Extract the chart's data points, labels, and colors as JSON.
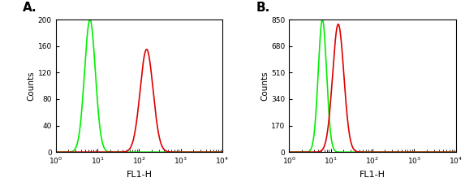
{
  "panel_A": {
    "label": "A.",
    "green": {
      "peak_log": 0.82,
      "sigma": 0.13,
      "amplitude": 200,
      "color": "#00ee00"
    },
    "red": {
      "peak_log": 2.18,
      "sigma": 0.155,
      "amplitude": 155,
      "color": "#dd0000"
    },
    "ylim": [
      0,
      200
    ],
    "yticks": [
      0,
      40,
      80,
      120,
      160,
      200
    ],
    "ylabel": "Counts"
  },
  "panel_B": {
    "label": "B.",
    "green": {
      "peak_log": 0.8,
      "sigma": 0.1,
      "amplitude": 850,
      "color": "#00ee00"
    },
    "red": {
      "peak_log": 1.18,
      "sigma": 0.135,
      "amplitude": 820,
      "color": "#dd0000"
    },
    "ylim": [
      0,
      850
    ],
    "yticks": [
      0,
      170,
      340,
      510,
      680,
      850
    ],
    "ylabel": "Counts"
  },
  "xlabel": "FL1-H",
  "xlim_log": [
    0,
    4
  ],
  "xticks_log": [
    0,
    1,
    2,
    3,
    4
  ],
  "background_color": "#ffffff",
  "linewidth": 1.2
}
